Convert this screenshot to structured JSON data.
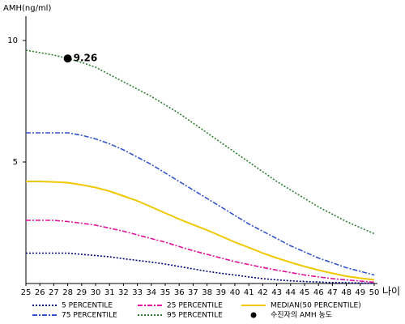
{
  "chart_data": {
    "type": "line",
    "y_label": "AMH(ng/ml)",
    "x_label": "나이",
    "x": [
      25,
      26,
      27,
      28,
      29,
      30,
      31,
      32,
      33,
      34,
      35,
      36,
      37,
      38,
      39,
      40,
      41,
      42,
      43,
      44,
      45,
      46,
      47,
      48,
      49,
      50
    ],
    "xlim": [
      25,
      50
    ],
    "xticks": [
      25,
      26,
      27,
      28,
      29,
      30,
      31,
      32,
      33,
      34,
      35,
      36,
      37,
      38,
      39,
      40,
      41,
      42,
      43,
      44,
      45,
      46,
      47,
      48,
      49,
      50
    ],
    "ylim": [
      0,
      11
    ],
    "yticks": [
      5,
      10
    ],
    "series": [
      {
        "name": "5 PERCENTILE",
        "color": "#000080",
        "dash": "2,2",
        "values": [
          1.25,
          1.25,
          1.25,
          1.25,
          1.2,
          1.15,
          1.1,
          1.02,
          0.95,
          0.88,
          0.8,
          0.7,
          0.6,
          0.5,
          0.42,
          0.35,
          0.27,
          0.2,
          0.15,
          0.11,
          0.08,
          0.06,
          0.04,
          0.03,
          0.02,
          0.01
        ]
      },
      {
        "name": "25 PERCENTILE",
        "color": "#e0119a",
        "dash": "6,2,2,2",
        "values": [
          2.6,
          2.6,
          2.6,
          2.55,
          2.48,
          2.4,
          2.28,
          2.15,
          2.0,
          1.85,
          1.7,
          1.52,
          1.35,
          1.2,
          1.05,
          0.9,
          0.78,
          0.66,
          0.55,
          0.45,
          0.35,
          0.27,
          0.2,
          0.15,
          0.1,
          0.05
        ]
      },
      {
        "name": "MEDIAN(50 PERCENTILE)",
        "color": "#f0c800",
        "dash": "",
        "values": [
          4.2,
          4.2,
          4.18,
          4.15,
          4.06,
          3.95,
          3.8,
          3.6,
          3.4,
          3.15,
          2.9,
          2.65,
          2.42,
          2.2,
          1.95,
          1.7,
          1.48,
          1.25,
          1.05,
          0.87,
          0.7,
          0.55,
          0.42,
          0.3,
          0.22,
          0.15
        ]
      },
      {
        "name": "75 PERCENTILE",
        "color": "#3355cc",
        "dash": "6,2,2,2",
        "values": [
          6.2,
          6.2,
          6.2,
          6.2,
          6.1,
          5.95,
          5.75,
          5.5,
          5.2,
          4.9,
          4.55,
          4.2,
          3.85,
          3.5,
          3.15,
          2.8,
          2.45,
          2.15,
          1.85,
          1.55,
          1.3,
          1.05,
          0.85,
          0.65,
          0.5,
          0.35
        ]
      },
      {
        "name": "95 PERCENTILE",
        "color": "#2e7d32",
        "dash": "2,2",
        "values": [
          9.6,
          9.5,
          9.4,
          9.26,
          9.1,
          8.9,
          8.6,
          8.3,
          8.0,
          7.7,
          7.35,
          7.0,
          6.6,
          6.2,
          5.8,
          5.4,
          5.0,
          4.6,
          4.2,
          3.85,
          3.5,
          3.15,
          2.85,
          2.55,
          2.3,
          2.05
        ]
      }
    ],
    "points": {
      "name": "수진자의 AMH 농도",
      "color": "#000000",
      "x": [
        28
      ],
      "values": [
        9.26
      ]
    }
  }
}
